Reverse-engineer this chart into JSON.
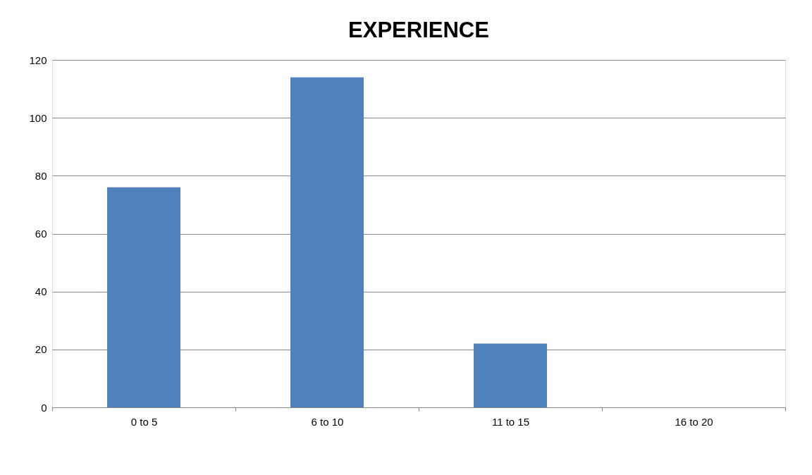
{
  "chart_data": {
    "type": "bar",
    "title": "EXPERIENCE",
    "categories": [
      "0 to 5",
      "6 to 10",
      "11 to 15",
      "16 to 20"
    ],
    "values": [
      76,
      114,
      22,
      0
    ],
    "color": "#4f81bd",
    "ylim": [
      0,
      120
    ],
    "yticks": [
      0,
      20,
      40,
      60,
      80,
      100,
      120
    ],
    "grid": "y"
  }
}
